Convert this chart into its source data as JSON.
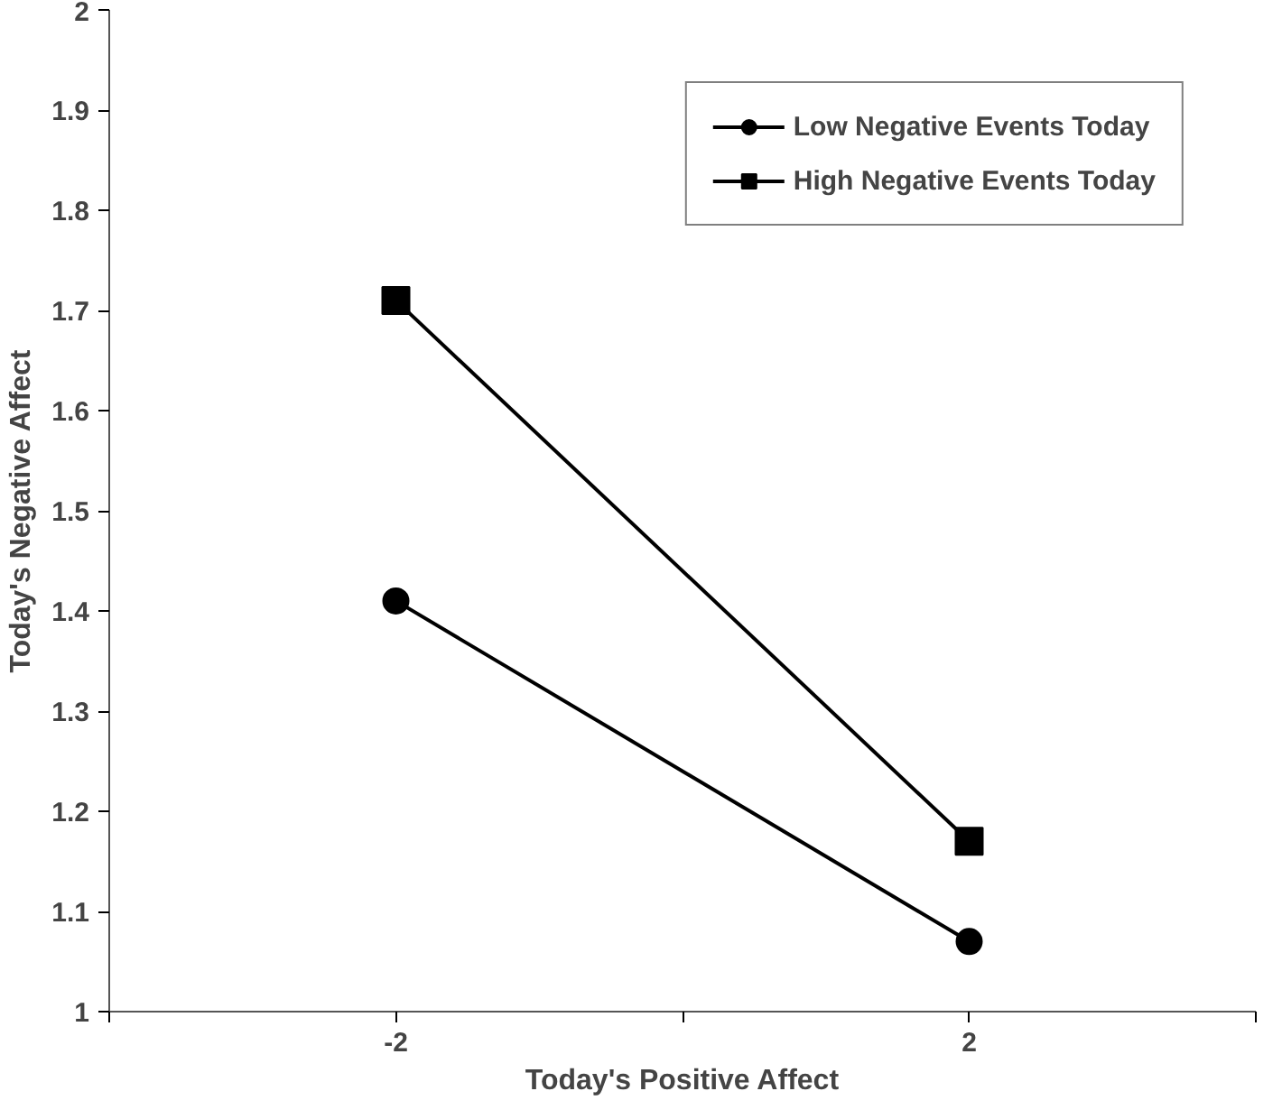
{
  "chart_data": {
    "type": "line",
    "xlabel": "Today's Positive Affect",
    "ylabel": "Today's Negative Affect",
    "x": [
      -2,
      2
    ],
    "series": [
      {
        "name": "Low Negative Events Today",
        "color": "#000000",
        "marker": "circle",
        "values": [
          1.41,
          1.07
        ]
      },
      {
        "name": "High Negative Events Today",
        "color": "#000000",
        "marker": "square",
        "values": [
          1.71,
          1.17
        ]
      }
    ],
    "xlim": [
      -4,
      4
    ],
    "xticks": [
      {
        "value": -4,
        "label": null
      },
      -2,
      {
        "value": 0,
        "label": null
      },
      2,
      {
        "value": 4,
        "label": null
      }
    ],
    "ylim": [
      1,
      2
    ],
    "yticks": [
      1,
      1.1,
      1.2,
      1.3,
      1.4,
      1.5,
      1.6,
      1.7,
      1.8,
      1.9,
      2
    ],
    "grid": false,
    "legend": "top right",
    "line_style": "solid"
  }
}
